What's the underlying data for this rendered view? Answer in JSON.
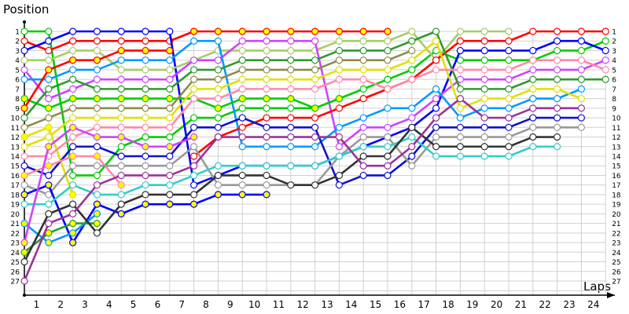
{
  "chart_data": {
    "type": "line",
    "title": "",
    "xlabel": "Laps",
    "ylabel": "Position",
    "x": [
      0,
      1,
      2,
      3,
      4,
      5,
      6,
      7,
      8,
      9,
      10,
      11,
      12,
      13,
      14,
      15,
      16,
      17,
      18,
      19,
      20,
      21,
      22,
      23,
      24
    ],
    "x_tick_labels": [
      "1",
      "2",
      "3",
      "4",
      "5",
      "6",
      "7",
      "8",
      "9",
      "10",
      "11",
      "12",
      "13",
      "14",
      "15",
      "16",
      "17",
      "18",
      "19",
      "20",
      "21",
      "22",
      "23",
      "24"
    ],
    "y_tick_labels": [
      "1",
      "2",
      "3",
      "4",
      "5",
      "6",
      "7",
      "8",
      "9",
      "10",
      "11",
      "12",
      "13",
      "14",
      "15",
      "16",
      "17",
      "18",
      "19",
      "20",
      "21",
      "22",
      "23",
      "24",
      "25",
      "26",
      "27"
    ],
    "ylim": [
      1,
      27
    ],
    "y_inverted": true,
    "grid": true,
    "legend": "none",
    "series": [
      {
        "name": "lime",
        "color": "#00cc00",
        "fill": "#ffffff",
        "values": [
          1,
          1,
          16,
          16,
          13,
          12,
          12,
          10,
          10,
          9,
          9,
          9,
          9,
          8,
          7,
          6,
          5,
          3,
          4,
          4,
          4,
          4,
          3,
          3,
          2
        ]
      },
      {
        "name": "red",
        "color": "#ff0000",
        "fill": "#ffffff",
        "values": [
          2,
          3,
          2,
          2,
          2,
          2,
          2,
          1,
          null,
          null,
          null,
          null,
          null,
          null,
          null,
          null,
          null,
          null,
          null,
          null,
          null,
          null,
          null,
          null,
          null
        ]
      },
      {
        "name": "blue",
        "color": "#0000ff",
        "fill": "#ffffff",
        "values": [
          3,
          2,
          1,
          1,
          1,
          1,
          1,
          17,
          16,
          15,
          15,
          15,
          15,
          14,
          13,
          12,
          11,
          9,
          3,
          3,
          3,
          3,
          2,
          2,
          3
        ]
      },
      {
        "name": "light-olive",
        "color": "#a6cc66",
        "fill": "#ffffff",
        "values": [
          4,
          4,
          3,
          3,
          5,
          5,
          5,
          4,
          3,
          3,
          3,
          3,
          3,
          2,
          2,
          2,
          1,
          4,
          1,
          1,
          1,
          null,
          null,
          null,
          null
        ]
      },
      {
        "name": "violet",
        "color": "#cc44ff",
        "fill": "#ffffff",
        "values": [
          5,
          8,
          7,
          6,
          6,
          6,
          6,
          4,
          4,
          2,
          2,
          2,
          2,
          13,
          11,
          11,
          10,
          8,
          6,
          6,
          6,
          5,
          5,
          5,
          4
        ]
      },
      {
        "name": "light-blue",
        "color": "#0099ff",
        "fill": "#ffffff",
        "values": [
          6,
          6,
          5,
          5,
          4,
          4,
          4,
          2,
          2,
          13,
          13,
          13,
          13,
          11,
          10,
          9,
          9,
          7,
          10,
          9,
          9,
          8,
          8,
          7,
          null
        ]
      },
      {
        "name": "lime-yellow",
        "color": "#00cc00",
        "fill": "#ffff00",
        "values": [
          8,
          9,
          8,
          8,
          8,
          8,
          8,
          8,
          9,
          8,
          8,
          8,
          9,
          8,
          null,
          null,
          null,
          null,
          null,
          null,
          null,
          null,
          null,
          null,
          null
        ]
      },
      {
        "name": "red-yellow",
        "color": "#ff0000",
        "fill": "#ffff00",
        "values": [
          9,
          5,
          4,
          4,
          3,
          3,
          3,
          null,
          null,
          null,
          null,
          null,
          null,
          null,
          null,
          null,
          null,
          null,
          null,
          null,
          null,
          null,
          null,
          null,
          null
        ]
      },
      {
        "name": "red-2",
        "color": "#ff0000",
        "fill": "#ffffff",
        "values": [
          null,
          null,
          null,
          null,
          null,
          null,
          null,
          14,
          12,
          11,
          10,
          10,
          10,
          9,
          8,
          7,
          6,
          4,
          2,
          2,
          2,
          1,
          1,
          1,
          1
        ]
      },
      {
        "name": "red-yellow-lead",
        "color": "#ff0000",
        "fill": "#ffff00",
        "values": [
          null,
          null,
          null,
          null,
          null,
          null,
          null,
          1,
          1,
          1,
          1,
          1,
          1,
          1,
          1,
          1,
          null,
          null,
          null,
          null,
          null,
          null,
          null,
          null,
          null
        ]
      },
      {
        "name": "dark-green",
        "color": "#2e9a2e",
        "fill": "#ffffff",
        "values": [
          10,
          7,
          6,
          7,
          7,
          7,
          7,
          5,
          5,
          4,
          4,
          4,
          4,
          3,
          3,
          3,
          2,
          1,
          7,
          7,
          7,
          6,
          6,
          6,
          6
        ]
      },
      {
        "name": "olive",
        "color": "#8b8b4b",
        "fill": "#ffffff",
        "values": [
          11,
          10,
          9,
          9,
          9,
          9,
          9,
          6,
          6,
          5,
          5,
          5,
          5,
          4,
          4,
          4,
          3,
          null,
          null,
          null,
          null,
          null,
          null,
          null,
          null
        ]
      },
      {
        "name": "yellow-filled",
        "color": "#e0e000",
        "fill": "#ffff00",
        "values": [
          12,
          11,
          18,
          null,
          null,
          null,
          null,
          null,
          null,
          null,
          null,
          null,
          null,
          null,
          null,
          null,
          null,
          null,
          null,
          null,
          null,
          null,
          null,
          null,
          null
        ]
      },
      {
        "name": "yellow",
        "color": "#e0e000",
        "fill": "#ffffff",
        "values": [
          13,
          12,
          10,
          10,
          10,
          10,
          10,
          7,
          7,
          6,
          6,
          6,
          6,
          5,
          5,
          5,
          4,
          2,
          9,
          8,
          8,
          7,
          7,
          8,
          null
        ]
      },
      {
        "name": "pink",
        "color": "#ff88aa",
        "fill": "#ffffff",
        "values": [
          14,
          14,
          12,
          11,
          11,
          11,
          11,
          8,
          8,
          7,
          7,
          7,
          7,
          6,
          6,
          7,
          6,
          5,
          5,
          5,
          5,
          4,
          4,
          4,
          5
        ]
      },
      {
        "name": "navy",
        "color": "#1010cc",
        "fill": "#ffffff",
        "values": [
          15,
          16,
          13,
          13,
          14,
          14,
          14,
          11,
          11,
          10,
          11,
          11,
          11,
          17,
          16,
          16,
          14,
          11,
          11,
          11,
          11,
          10,
          10,
          10,
          null
        ]
      },
      {
        "name": "pink-yellow",
        "color": "#ff88aa",
        "fill": "#ffff00",
        "values": [
          16,
          15,
          14,
          14,
          17,
          null,
          null,
          null,
          null,
          null,
          null,
          null,
          null,
          null,
          null,
          null,
          null,
          null,
          null,
          null,
          null,
          null,
          null,
          null,
          null
        ]
      },
      {
        "name": "gray",
        "color": "#999999",
        "fill": "#ffffff",
        "values": [
          17,
          18,
          15,
          15,
          15,
          15,
          15,
          13,
          17,
          17,
          17,
          17,
          17,
          14,
          12,
          12,
          15,
          12,
          12,
          12,
          12,
          11,
          11,
          11,
          null
        ]
      },
      {
        "name": "blue-yellow",
        "color": "#0000ff",
        "fill": "#ffff00",
        "values": [
          18,
          17,
          23,
          19,
          20,
          19,
          19,
          19,
          18,
          18,
          18,
          null,
          null,
          null,
          null,
          null,
          null,
          null,
          null,
          null,
          null,
          null,
          null,
          null,
          null
        ]
      },
      {
        "name": "cyan",
        "color": "#33cccc",
        "fill": "#ffffff",
        "values": [
          19,
          19,
          17,
          18,
          18,
          17,
          17,
          16,
          15,
          15,
          15,
          15,
          15,
          14,
          13,
          13,
          12,
          14,
          14,
          14,
          14,
          13,
          13,
          null,
          null
        ]
      },
      {
        "name": "light-blue-yellow",
        "color": "#0099ff",
        "fill": "#ffff00",
        "values": [
          21,
          23,
          22,
          20,
          null,
          null,
          null,
          null,
          null,
          null,
          null,
          null,
          null,
          null,
          null,
          null,
          null,
          null,
          null,
          null,
          null,
          null,
          null,
          null,
          null
        ]
      },
      {
        "name": "violet-yellow",
        "color": "#cc44ff",
        "fill": "#ffff00",
        "values": [
          23,
          13,
          11,
          12,
          12,
          13,
          13,
          12,
          null,
          null,
          null,
          null,
          null,
          null,
          null,
          null,
          null,
          null,
          null,
          null,
          null,
          null,
          null,
          null,
          null
        ]
      },
      {
        "name": "green-yellow",
        "color": "#2e9a2e",
        "fill": "#ffff00",
        "values": [
          24,
          22,
          21,
          21,
          null,
          null,
          null,
          null,
          null,
          null,
          null,
          null,
          null,
          null,
          null,
          null,
          null,
          null,
          null,
          null,
          null,
          null,
          null,
          null,
          null
        ]
      },
      {
        "name": "dark-gray",
        "color": "#333333",
        "fill": "#ffffff",
        "values": [
          25,
          20,
          19,
          22,
          19,
          18,
          18,
          18,
          16,
          16,
          16,
          17,
          17,
          16,
          14,
          14,
          11,
          13,
          13,
          13,
          13,
          12,
          12,
          null,
          null
        ]
      },
      {
        "name": "purple",
        "color": "#993399",
        "fill": "#ffffff",
        "values": [
          27,
          21,
          20,
          17,
          16,
          16,
          16,
          15,
          12,
          12,
          12,
          12,
          12,
          12,
          15,
          15,
          13,
          10,
          8,
          10,
          10,
          9,
          9,
          9,
          null
        ]
      }
    ]
  },
  "axis": {
    "ylabel": "Position",
    "xlabel": "Laps"
  }
}
